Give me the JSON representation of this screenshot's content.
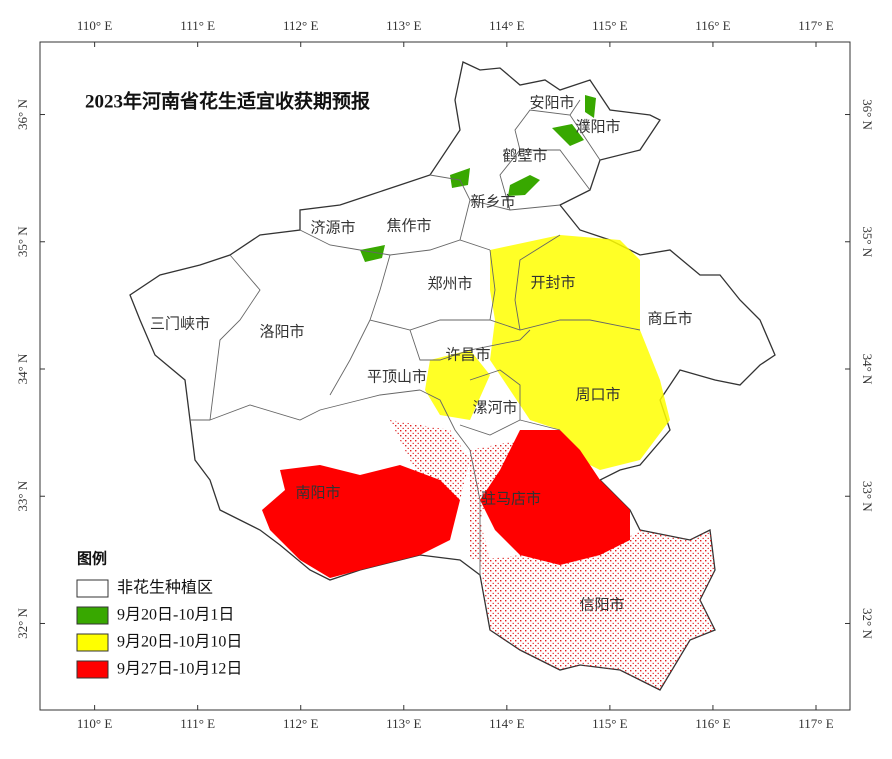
{
  "title": "2023年河南省花生适宜收获期预报",
  "map": {
    "lonlim": [
      109.47,
      117.33
    ],
    "latlim": [
      31.32,
      36.57
    ],
    "lon_ticks": [
      {
        "value": 110,
        "label": "110° E"
      },
      {
        "value": 111,
        "label": "111° E"
      },
      {
        "value": 112,
        "label": "112° E"
      },
      {
        "value": 113,
        "label": "113° E"
      },
      {
        "value": 114,
        "label": "114° E"
      },
      {
        "value": 115,
        "label": "115° E"
      },
      {
        "value": 116,
        "label": "116° E"
      },
      {
        "value": 117,
        "label": "117° E"
      }
    ],
    "lat_ticks": [
      {
        "value": 32,
        "label": "32° N"
      },
      {
        "value": 33,
        "label": "33° N"
      },
      {
        "value": 34,
        "label": "34° N"
      },
      {
        "value": 35,
        "label": "35° N"
      },
      {
        "value": 36,
        "label": "36° N"
      }
    ]
  },
  "cities": [
    "安阳市",
    "濮阳市",
    "鹤壁市",
    "新乡市",
    "济源市",
    "焦作市",
    "郑州市",
    "开封市",
    "三门峡市",
    "洛阳市",
    "商丘市",
    "许昌市",
    "平顶山市",
    "周口市",
    "漯河市",
    "南阳市",
    "驻马店市",
    "信阳市"
  ],
  "legend": {
    "title": "图例",
    "items": [
      {
        "label": "非花生种植区",
        "color": "#ffffff"
      },
      {
        "label": "9月20日-10月1日",
        "color": "#38a800"
      },
      {
        "label": "9月20日-10月10日",
        "color": "#ffff00"
      },
      {
        "label": "9月27日-10月12日",
        "color": "#ff0000"
      }
    ]
  }
}
